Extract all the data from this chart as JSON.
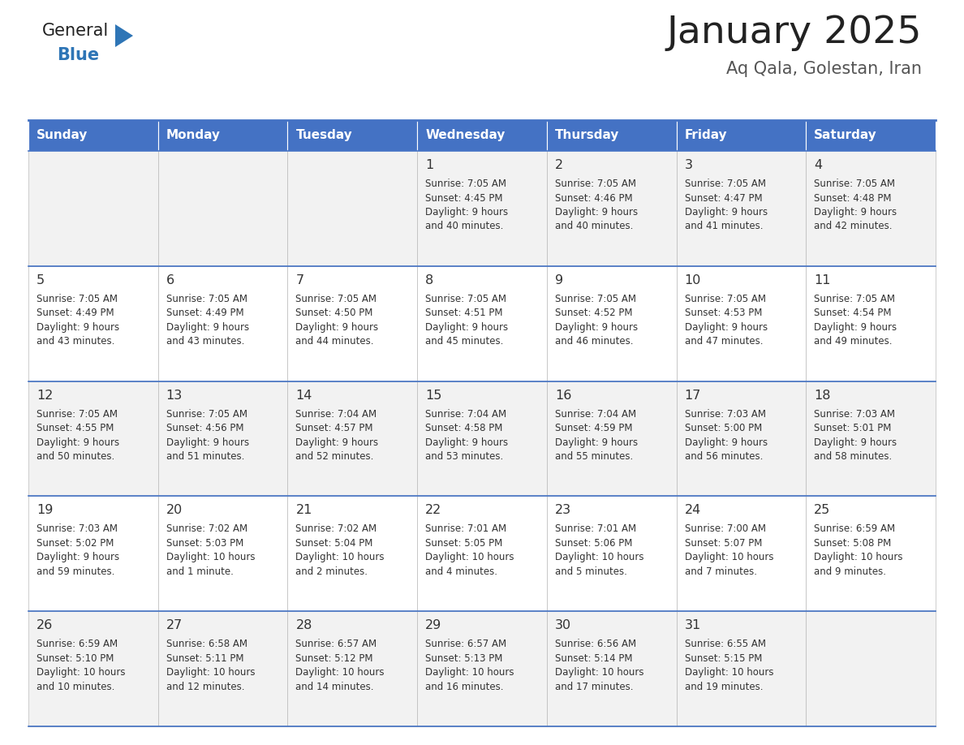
{
  "title": "January 2025",
  "subtitle": "Aq Qala, Golestan, Iran",
  "days_of_week": [
    "Sunday",
    "Monday",
    "Tuesday",
    "Wednesday",
    "Thursday",
    "Friday",
    "Saturday"
  ],
  "header_bg": "#4472C4",
  "header_text": "#FFFFFF",
  "row_bg_odd": "#F2F2F2",
  "row_bg_even": "#FFFFFF",
  "cell_text_color": "#333333",
  "day_number_color": "#333333",
  "title_color": "#222222",
  "subtitle_color": "#555555",
  "grid_color": "#BBBBBB",
  "border_color": "#4472C4",
  "logo_general_color": "#222222",
  "logo_blue_color": "#2E75B6",
  "calendar_data": [
    [
      null,
      null,
      null,
      {
        "day": 1,
        "sunrise": "7:05 AM",
        "sunset": "4:45 PM",
        "daylight": "9 hours",
        "daylight2": "and 40 minutes."
      },
      {
        "day": 2,
        "sunrise": "7:05 AM",
        "sunset": "4:46 PM",
        "daylight": "9 hours",
        "daylight2": "and 40 minutes."
      },
      {
        "day": 3,
        "sunrise": "7:05 AM",
        "sunset": "4:47 PM",
        "daylight": "9 hours",
        "daylight2": "and 41 minutes."
      },
      {
        "day": 4,
        "sunrise": "7:05 AM",
        "sunset": "4:48 PM",
        "daylight": "9 hours",
        "daylight2": "and 42 minutes."
      }
    ],
    [
      {
        "day": 5,
        "sunrise": "7:05 AM",
        "sunset": "4:49 PM",
        "daylight": "9 hours",
        "daylight2": "and 43 minutes."
      },
      {
        "day": 6,
        "sunrise": "7:05 AM",
        "sunset": "4:49 PM",
        "daylight": "9 hours",
        "daylight2": "and 43 minutes."
      },
      {
        "day": 7,
        "sunrise": "7:05 AM",
        "sunset": "4:50 PM",
        "daylight": "9 hours",
        "daylight2": "and 44 minutes."
      },
      {
        "day": 8,
        "sunrise": "7:05 AM",
        "sunset": "4:51 PM",
        "daylight": "9 hours",
        "daylight2": "and 45 minutes."
      },
      {
        "day": 9,
        "sunrise": "7:05 AM",
        "sunset": "4:52 PM",
        "daylight": "9 hours",
        "daylight2": "and 46 minutes."
      },
      {
        "day": 10,
        "sunrise": "7:05 AM",
        "sunset": "4:53 PM",
        "daylight": "9 hours",
        "daylight2": "and 47 minutes."
      },
      {
        "day": 11,
        "sunrise": "7:05 AM",
        "sunset": "4:54 PM",
        "daylight": "9 hours",
        "daylight2": "and 49 minutes."
      }
    ],
    [
      {
        "day": 12,
        "sunrise": "7:05 AM",
        "sunset": "4:55 PM",
        "daylight": "9 hours",
        "daylight2": "and 50 minutes."
      },
      {
        "day": 13,
        "sunrise": "7:05 AM",
        "sunset": "4:56 PM",
        "daylight": "9 hours",
        "daylight2": "and 51 minutes."
      },
      {
        "day": 14,
        "sunrise": "7:04 AM",
        "sunset": "4:57 PM",
        "daylight": "9 hours",
        "daylight2": "and 52 minutes."
      },
      {
        "day": 15,
        "sunrise": "7:04 AM",
        "sunset": "4:58 PM",
        "daylight": "9 hours",
        "daylight2": "and 53 minutes."
      },
      {
        "day": 16,
        "sunrise": "7:04 AM",
        "sunset": "4:59 PM",
        "daylight": "9 hours",
        "daylight2": "and 55 minutes."
      },
      {
        "day": 17,
        "sunrise": "7:03 AM",
        "sunset": "5:00 PM",
        "daylight": "9 hours",
        "daylight2": "and 56 minutes."
      },
      {
        "day": 18,
        "sunrise": "7:03 AM",
        "sunset": "5:01 PM",
        "daylight": "9 hours",
        "daylight2": "and 58 minutes."
      }
    ],
    [
      {
        "day": 19,
        "sunrise": "7:03 AM",
        "sunset": "5:02 PM",
        "daylight": "9 hours",
        "daylight2": "and 59 minutes."
      },
      {
        "day": 20,
        "sunrise": "7:02 AM",
        "sunset": "5:03 PM",
        "daylight": "10 hours",
        "daylight2": "and 1 minute."
      },
      {
        "day": 21,
        "sunrise": "7:02 AM",
        "sunset": "5:04 PM",
        "daylight": "10 hours",
        "daylight2": "and 2 minutes."
      },
      {
        "day": 22,
        "sunrise": "7:01 AM",
        "sunset": "5:05 PM",
        "daylight": "10 hours",
        "daylight2": "and 4 minutes."
      },
      {
        "day": 23,
        "sunrise": "7:01 AM",
        "sunset": "5:06 PM",
        "daylight": "10 hours",
        "daylight2": "and 5 minutes."
      },
      {
        "day": 24,
        "sunrise": "7:00 AM",
        "sunset": "5:07 PM",
        "daylight": "10 hours",
        "daylight2": "and 7 minutes."
      },
      {
        "day": 25,
        "sunrise": "6:59 AM",
        "sunset": "5:08 PM",
        "daylight": "10 hours",
        "daylight2": "and 9 minutes."
      }
    ],
    [
      {
        "day": 26,
        "sunrise": "6:59 AM",
        "sunset": "5:10 PM",
        "daylight": "10 hours",
        "daylight2": "and 10 minutes."
      },
      {
        "day": 27,
        "sunrise": "6:58 AM",
        "sunset": "5:11 PM",
        "daylight": "10 hours",
        "daylight2": "and 12 minutes."
      },
      {
        "day": 28,
        "sunrise": "6:57 AM",
        "sunset": "5:12 PM",
        "daylight": "10 hours",
        "daylight2": "and 14 minutes."
      },
      {
        "day": 29,
        "sunrise": "6:57 AM",
        "sunset": "5:13 PM",
        "daylight": "10 hours",
        "daylight2": "and 16 minutes."
      },
      {
        "day": 30,
        "sunrise": "6:56 AM",
        "sunset": "5:14 PM",
        "daylight": "10 hours",
        "daylight2": "and 17 minutes."
      },
      {
        "day": 31,
        "sunrise": "6:55 AM",
        "sunset": "5:15 PM",
        "daylight": "10 hours",
        "daylight2": "and 19 minutes."
      },
      null
    ]
  ]
}
